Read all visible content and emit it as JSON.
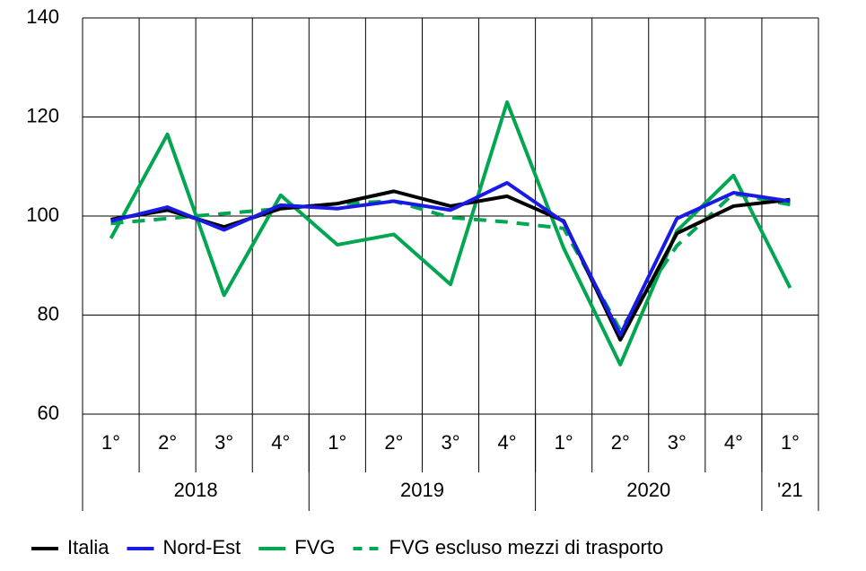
{
  "chart_data": {
    "type": "line",
    "categories": [
      "1°",
      "2°",
      "3°",
      "4°",
      "1°",
      "2°",
      "3°",
      "4°",
      "1°",
      "2°",
      "3°",
      "4°",
      "1°"
    ],
    "groups": [
      {
        "label": "2018",
        "span": 4
      },
      {
        "label": "2019",
        "span": 4
      },
      {
        "label": "2020",
        "span": 4
      },
      {
        "label": "'21",
        "span": 1
      }
    ],
    "ylim": [
      60,
      140
    ],
    "yticks": [
      60,
      80,
      100,
      120,
      140
    ],
    "grid": true,
    "legend": "bottom",
    "series": [
      {
        "name": "Italia",
        "color": "#000000",
        "dash": false,
        "values": [
          99.3,
          101.2,
          97.8,
          101.5,
          102.5,
          105,
          102,
          104,
          99,
          75,
          96.5,
          102,
          103.3
        ]
      },
      {
        "name": "Nord-Est",
        "color": "#1a1ae6",
        "dash": false,
        "values": [
          99,
          101.8,
          97.2,
          102.2,
          101.5,
          103,
          101.2,
          106.7,
          98.8,
          76,
          99.5,
          104.7,
          103
        ]
      },
      {
        "name": "FVG",
        "color": "#00a650",
        "dash": false,
        "values": [
          95.5,
          116.5,
          84,
          104.2,
          94.2,
          96.3,
          86.2,
          123,
          93.5,
          70,
          97,
          108.2,
          85.5
        ]
      },
      {
        "name": "FVG escluso mezzi di trasporto",
        "color": "#00a650",
        "dash": true,
        "values": [
          98.5,
          99.5,
          100.5,
          101.5,
          102.5,
          103,
          99.7,
          98.8,
          97.5,
          77,
          94,
          104.5,
          102.3
        ]
      }
    ]
  }
}
